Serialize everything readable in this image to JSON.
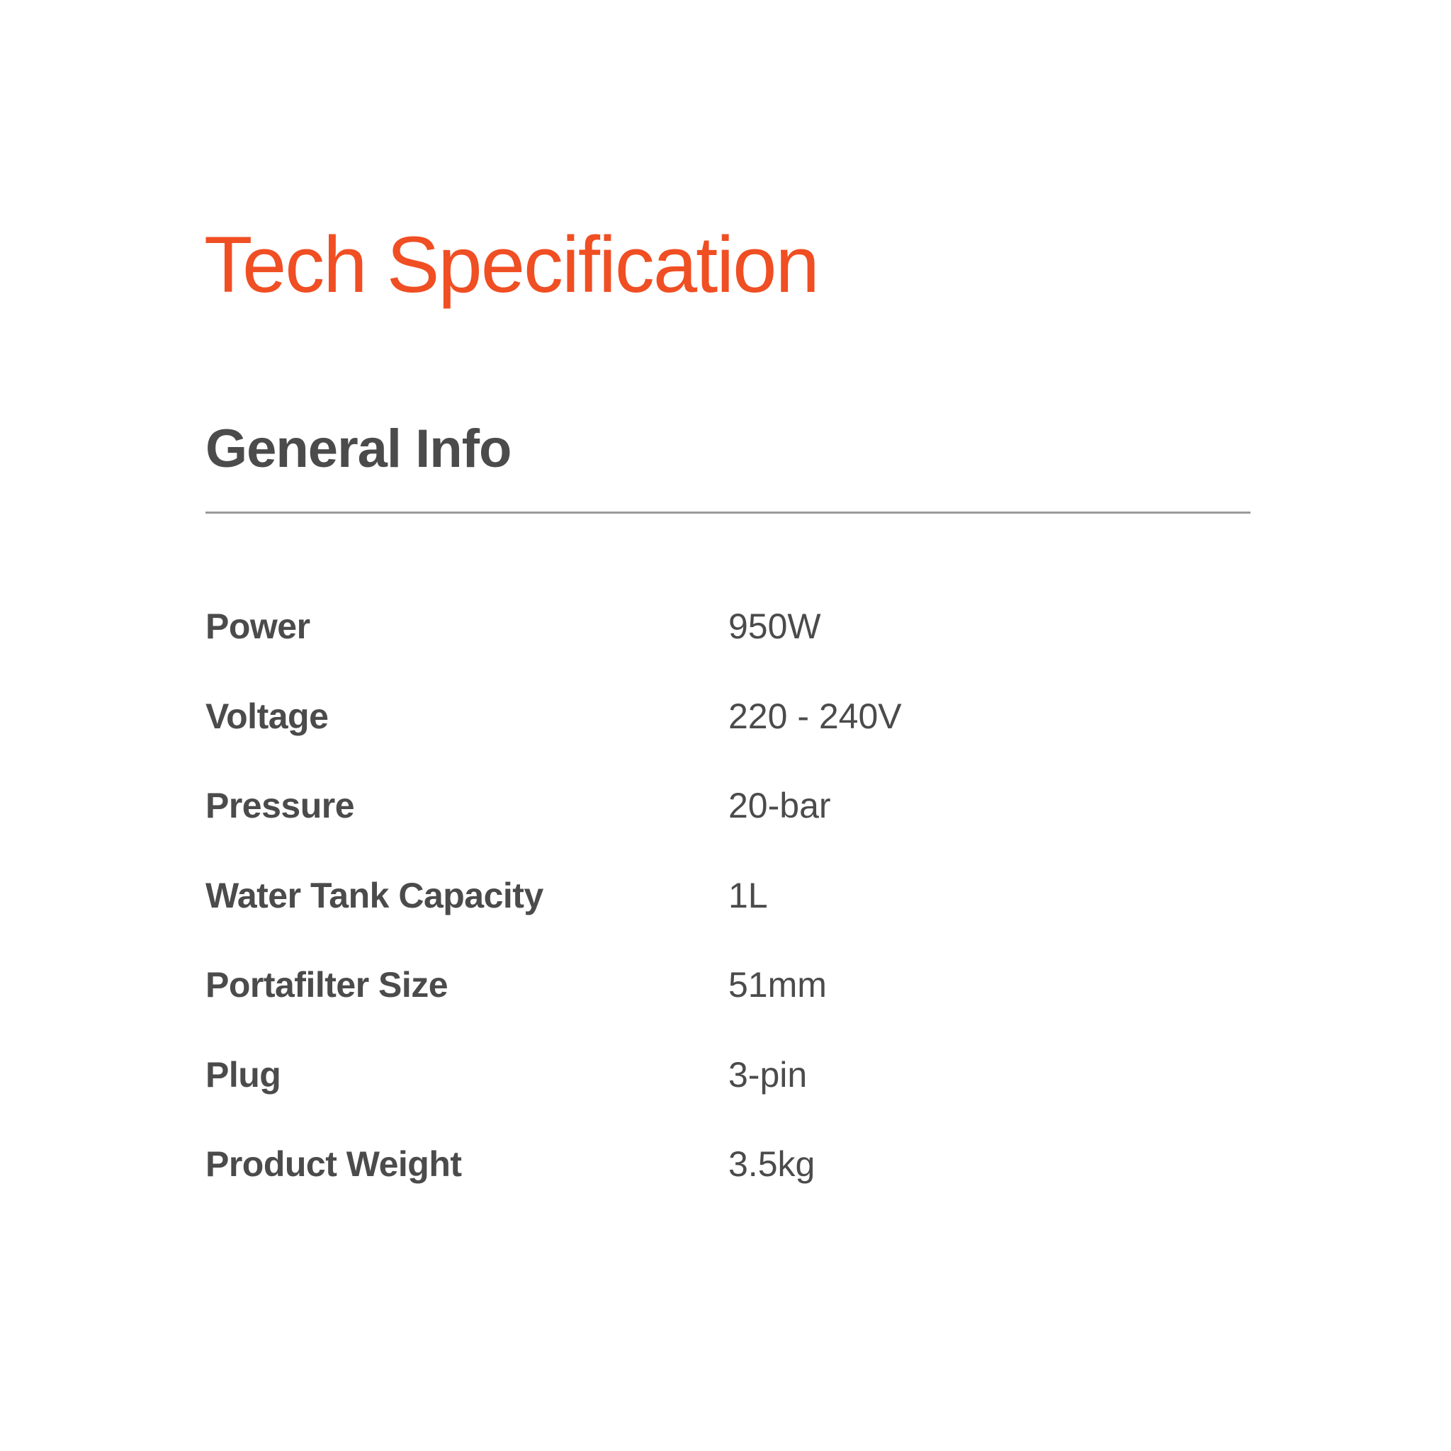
{
  "title": "Tech Specification",
  "section": {
    "heading": "General Info",
    "rows": [
      {
        "label": "Power",
        "value": "950W"
      },
      {
        "label": "Voltage",
        "value": "220 - 240V"
      },
      {
        "label": "Pressure",
        "value": "20-bar"
      },
      {
        "label": "Water Tank Capacity",
        "value": "1L"
      },
      {
        "label": "Portafilter Size",
        "value": "51mm"
      },
      {
        "label": "Plug",
        "value": "3-pin"
      },
      {
        "label": "Product Weight",
        "value": "3.5kg"
      }
    ]
  },
  "colors": {
    "accent": "#f04e23",
    "text": "#4b4b4b",
    "divider": "#9a9a9a"
  }
}
